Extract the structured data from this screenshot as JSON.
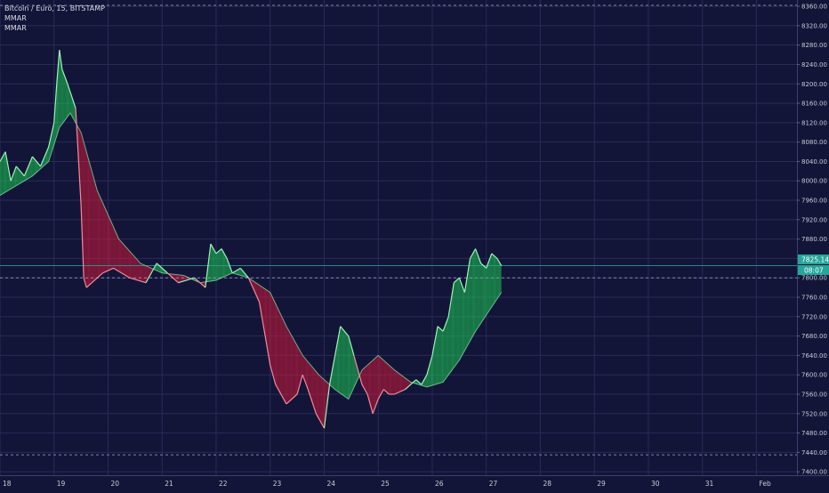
{
  "legend": {
    "symbol_line": "Bitcoin / Euro, 15, BITSTAMP",
    "indicator_1": "MMAR",
    "indicator_2": "MMAR"
  },
  "price_tag": {
    "value": "7825.14",
    "countdown": "08:07"
  },
  "colors": {
    "background": "#131538",
    "grid": "#272b57",
    "bull": "#1fe05a",
    "bear": "#e51c3c",
    "price_line": "#26a69a",
    "dashed_levels": "#9aa0c0"
  },
  "chart_data": {
    "type": "line",
    "title": "Bitcoin / Euro, 15, BITSTAMP",
    "xlabel": "",
    "ylabel": "",
    "x_ticks": [
      "18",
      "19",
      "20",
      "21",
      "22",
      "23",
      "24",
      "25",
      "26",
      "27",
      "28",
      "29",
      "30",
      "31",
      "Feb"
    ],
    "y_ticks": [
      7400,
      7440,
      7480,
      7520,
      7560,
      7600,
      7640,
      7680,
      7720,
      7760,
      7800,
      7840,
      7880,
      7920,
      7960,
      8000,
      8040,
      8080,
      8120,
      8160,
      8200,
      8240,
      8280,
      8320,
      8360
    ],
    "ylim": [
      7393,
      8373
    ],
    "xlim": [
      18.0,
      32.75
    ],
    "grid": true,
    "last_price": 7825.14,
    "horizontal_levels": [
      7800,
      8362,
      7435
    ],
    "series": [
      {
        "name": "",
        "x": [
          18.0,
          18.1,
          18.2,
          18.3,
          18.45,
          18.6,
          18.75,
          18.9,
          19.0,
          19.05,
          19.1,
          19.15,
          19.25,
          19.4,
          19.5,
          19.55,
          19.6,
          19.7,
          19.9,
          20.1,
          20.4,
          20.7,
          20.9,
          21.1,
          21.3,
          21.6,
          21.8,
          21.9,
          22.0,
          22.1,
          22.2,
          22.3,
          22.45,
          22.6,
          22.8,
          23.0,
          23.1,
          23.3,
          23.5,
          23.6,
          23.7,
          23.85,
          24.0,
          24.1,
          24.2,
          24.3,
          24.45,
          24.55,
          24.7,
          24.8,
          24.9,
          25.0,
          25.1,
          25.2,
          25.3,
          25.5,
          25.7,
          25.8,
          25.9,
          26.0,
          26.1,
          26.2,
          26.3,
          26.4,
          26.5,
          26.6,
          26.7,
          26.8,
          26.9,
          27.0,
          27.1,
          27.2,
          27.28
        ],
        "y": [
          8040,
          8060,
          8000,
          8030,
          8010,
          8050,
          8030,
          8070,
          8120,
          8200,
          8270,
          8230,
          8200,
          8150,
          7950,
          7800,
          7780,
          7790,
          7810,
          7820,
          7800,
          7790,
          7830,
          7810,
          7790,
          7800,
          7780,
          7870,
          7850,
          7860,
          7840,
          7810,
          7820,
          7800,
          7750,
          7620,
          7580,
          7540,
          7560,
          7600,
          7570,
          7520,
          7490,
          7580,
          7640,
          7700,
          7680,
          7640,
          7580,
          7560,
          7520,
          7550,
          7570,
          7560,
          7560,
          7570,
          7590,
          7580,
          7600,
          7640,
          7700,
          7690,
          7720,
          7790,
          7800,
          7770,
          7840,
          7860,
          7830,
          7820,
          7850,
          7840,
          7825
        ]
      },
      {
        "name": "",
        "x": [
          18.0,
          18.3,
          18.6,
          18.9,
          19.1,
          19.3,
          19.5,
          19.8,
          20.2,
          20.6,
          21.0,
          21.4,
          21.7,
          22.0,
          22.3,
          22.6,
          23.0,
          23.3,
          23.6,
          23.9,
          24.2,
          24.45,
          24.7,
          25.0,
          25.3,
          25.6,
          25.9,
          26.2,
          26.5,
          26.8,
          27.1,
          27.28
        ],
        "y": [
          7970,
          7990,
          8010,
          8040,
          8110,
          8140,
          8100,
          7980,
          7880,
          7830,
          7810,
          7805,
          7790,
          7795,
          7810,
          7800,
          7770,
          7700,
          7640,
          7600,
          7570,
          7550,
          7610,
          7640,
          7610,
          7585,
          7575,
          7585,
          7630,
          7690,
          7740,
          7770
        ]
      }
    ],
    "annotations": []
  }
}
